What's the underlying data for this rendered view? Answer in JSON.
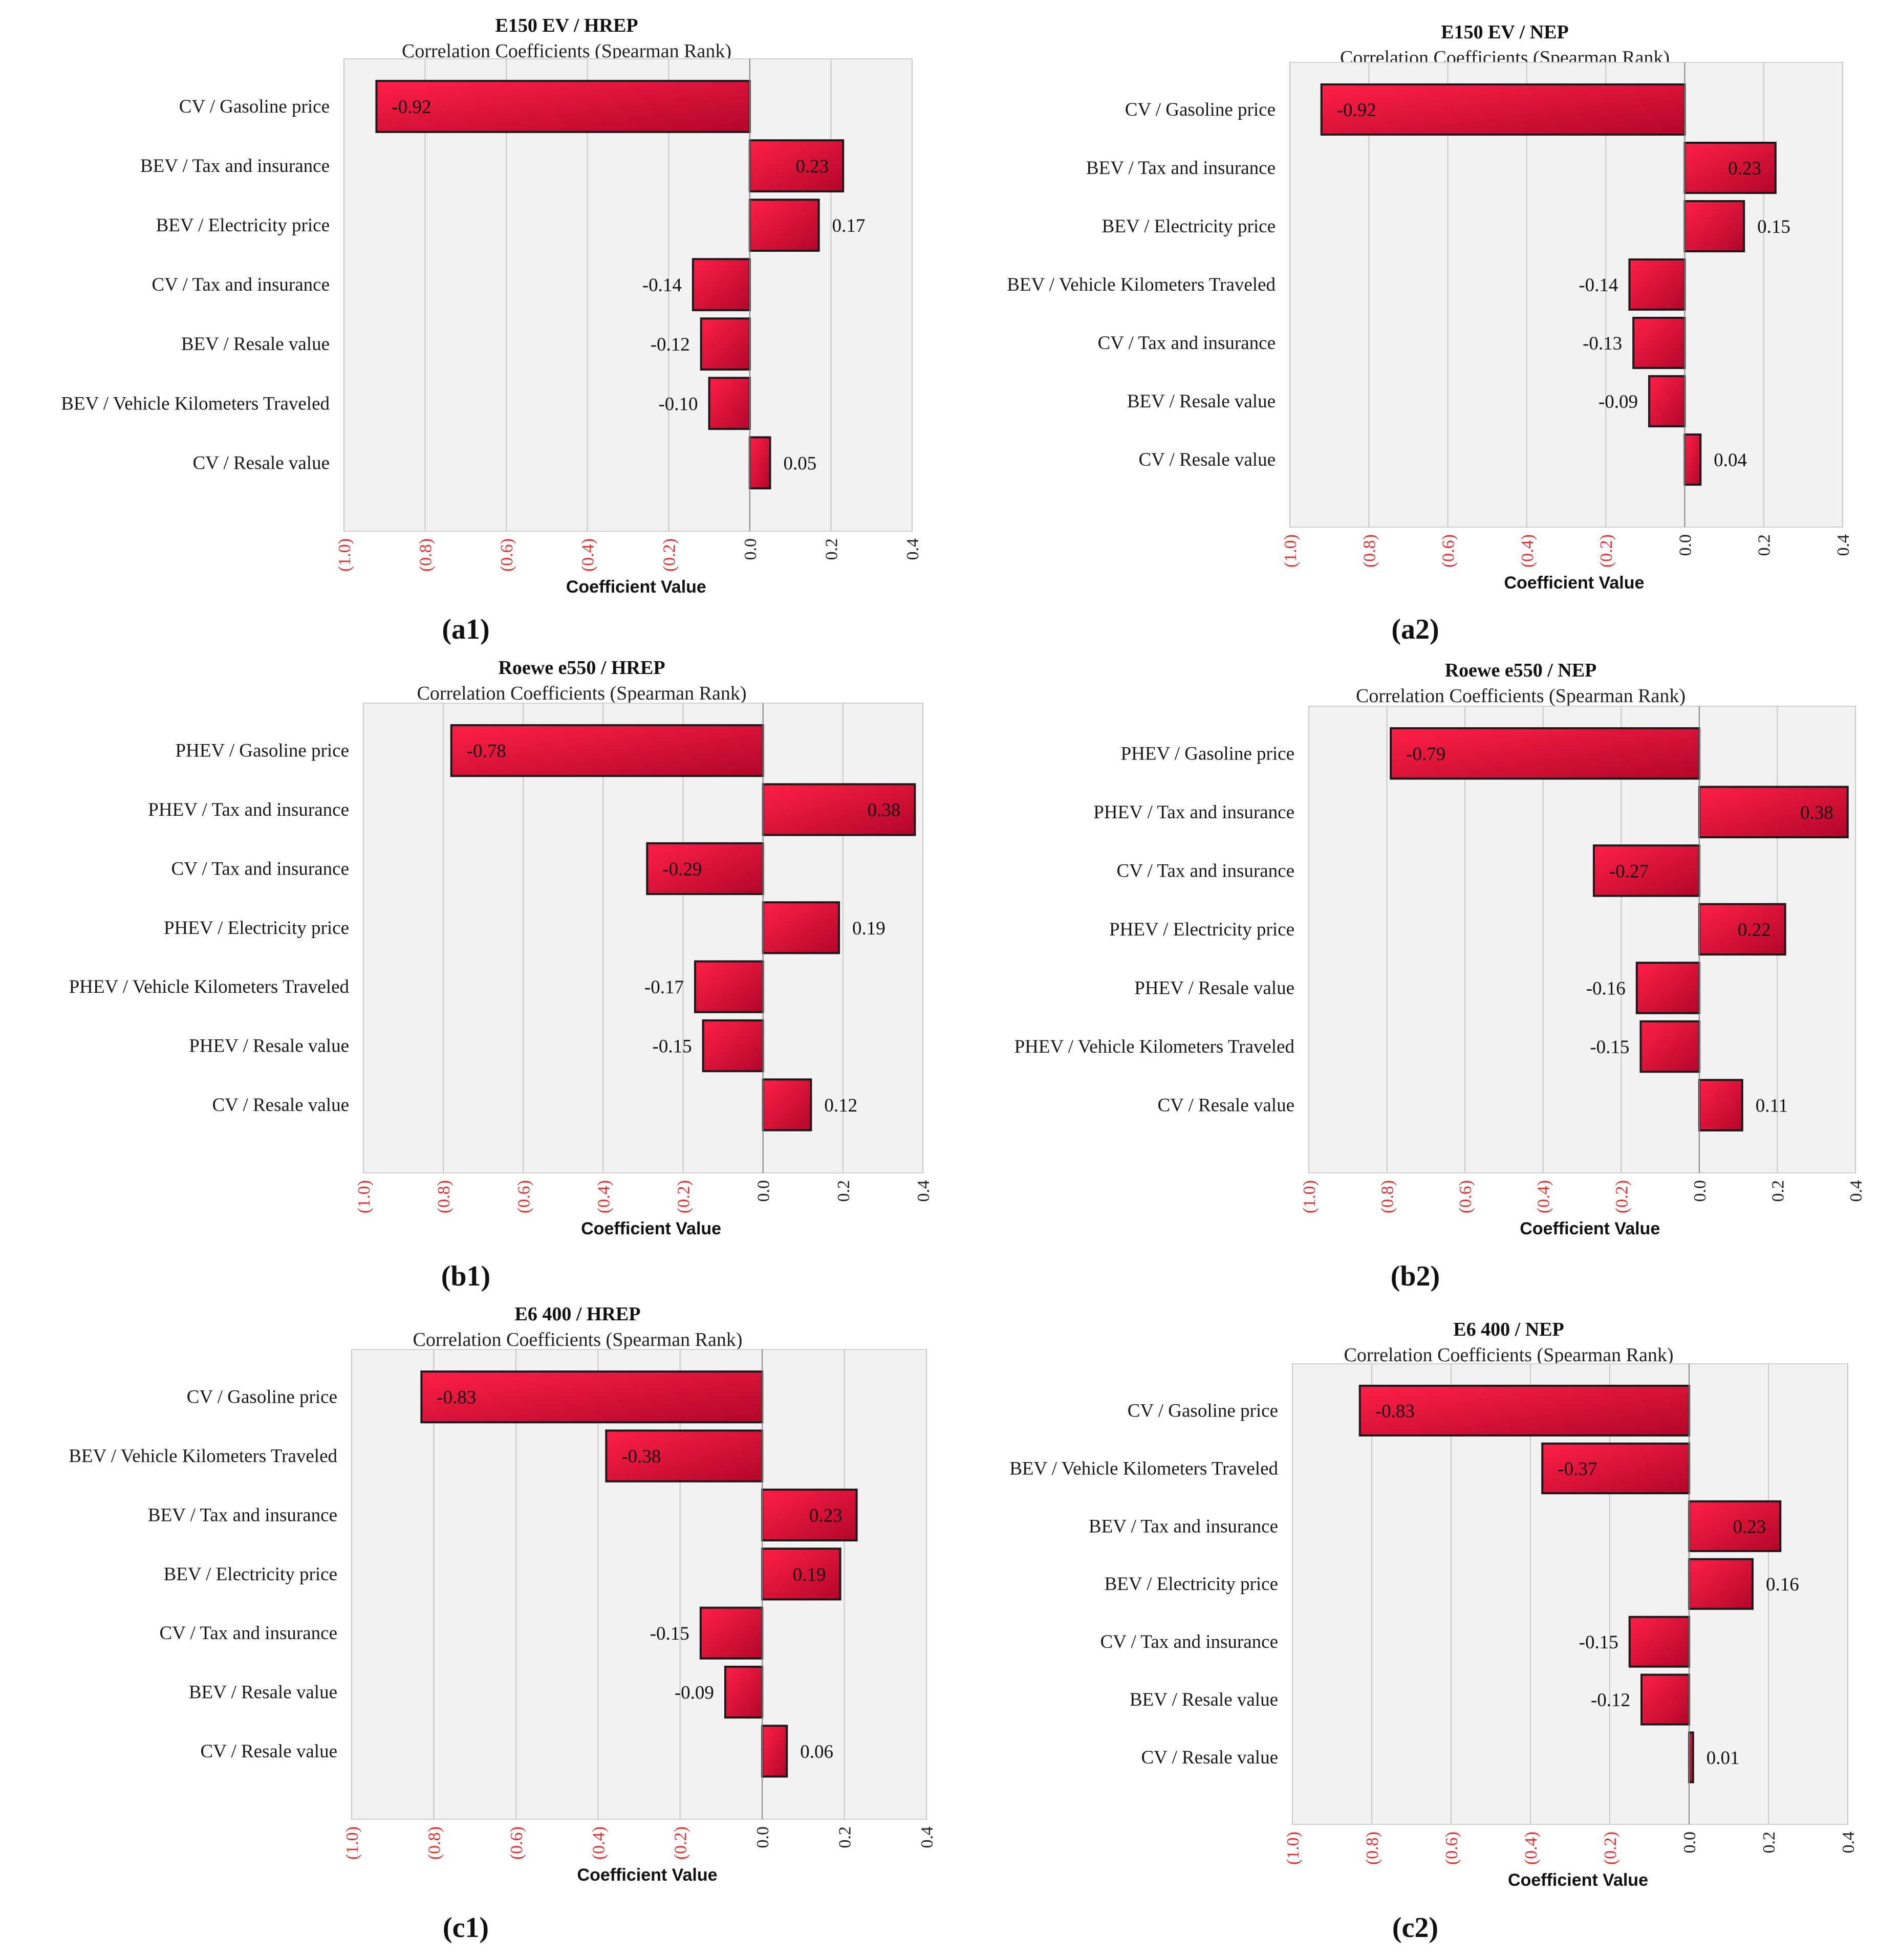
{
  "colors": {
    "bar_dark": "#b3062a",
    "bar_light": "#ff1f47",
    "plot_bg": "#f2f2f2",
    "grid": "#c8c8c8",
    "negative_tick": "#e03030",
    "positive_tick": "#222222"
  },
  "chart_data": [
    {
      "id": "a1",
      "panel_label": "(a1)",
      "type": "bar",
      "orientation": "horizontal",
      "title": "E150 EV / HREP",
      "subtitle": "Correlation Coefficients (Spearman Rank)",
      "xlabel": "Coefficient Value",
      "xlim": [
        -1.0,
        0.4
      ],
      "xticks": [
        -1.0,
        -0.8,
        -0.6,
        -0.4,
        -0.2,
        0.0,
        0.2,
        0.4
      ],
      "xtick_labels": [
        "(1.0)",
        "(0.8)",
        "(0.6)",
        "(0.4)",
        "(0.2)",
        "0.0",
        "0.2",
        "0.4"
      ],
      "categories": [
        "CV / Gasoline price",
        "BEV / Tax and insurance",
        "BEV / Electricity price",
        "CV / Tax and insurance",
        "BEV / Resale value",
        "BEV / Vehicle Kilometers Traveled",
        "CV / Resale value"
      ],
      "values": [
        -0.92,
        0.23,
        0.17,
        -0.14,
        -0.12,
        -0.1,
        0.05
      ],
      "value_labels": [
        "-0.92",
        "0.23",
        "0.17",
        "-0.14",
        "-0.12",
        "-0.10",
        "0.05"
      ]
    },
    {
      "id": "a2",
      "panel_label": "(a2)",
      "type": "bar",
      "orientation": "horizontal",
      "title": "E150 EV / NEP",
      "subtitle": "Correlation Coefficients (Spearman Rank)",
      "xlabel": "Coefficient Value",
      "xlim": [
        -1.0,
        0.4
      ],
      "xticks": [
        -1.0,
        -0.8,
        -0.6,
        -0.4,
        -0.2,
        0.0,
        0.2,
        0.4
      ],
      "xtick_labels": [
        "(1.0)",
        "(0.8)",
        "(0.6)",
        "(0.4)",
        "(0.2)",
        "0.0",
        "0.2",
        "0.4"
      ],
      "categories": [
        "CV / Gasoline price",
        "BEV / Tax and insurance",
        "BEV / Electricity price",
        "BEV / Vehicle Kilometers Traveled",
        "CV / Tax and insurance",
        "BEV / Resale value",
        "CV / Resale value"
      ],
      "values": [
        -0.92,
        0.23,
        0.15,
        -0.14,
        -0.13,
        -0.09,
        0.04
      ],
      "value_labels": [
        "-0.92",
        "0.23",
        "0.15",
        "-0.14",
        "-0.13",
        "-0.09",
        "0.04"
      ]
    },
    {
      "id": "b1",
      "panel_label": "(b1)",
      "type": "bar",
      "orientation": "horizontal",
      "title": "Roewe e550 / HREP",
      "subtitle": "Correlation Coefficients (Spearman Rank)",
      "xlabel": "Coefficient Value",
      "xlim": [
        -1.0,
        0.4
      ],
      "xticks": [
        -1.0,
        -0.8,
        -0.6,
        -0.4,
        -0.2,
        0.0,
        0.2,
        0.4
      ],
      "xtick_labels": [
        "(1.0)",
        "(0.8)",
        "(0.6)",
        "(0.4)",
        "(0.2)",
        "0.0",
        "0.2",
        "0.4"
      ],
      "categories": [
        "PHEV / Gasoline price",
        "PHEV / Tax and insurance",
        "CV / Tax and insurance",
        "PHEV / Electricity price",
        "PHEV / Vehicle Kilometers Traveled",
        "PHEV / Resale value",
        "CV / Resale value"
      ],
      "values": [
        -0.78,
        0.38,
        -0.29,
        0.19,
        -0.17,
        -0.15,
        0.12
      ],
      "value_labels": [
        "-0.78",
        "0.38",
        "-0.29",
        "0.19",
        "-0.17",
        "-0.15",
        "0.12"
      ]
    },
    {
      "id": "b2",
      "panel_label": "(b2)",
      "type": "bar",
      "orientation": "horizontal",
      "title": "Roewe e550 / NEP",
      "subtitle": "Correlation Coefficients (Spearman Rank)",
      "xlabel": "Coefficient Value",
      "xlim": [
        -1.0,
        0.4
      ],
      "xticks": [
        -1.0,
        -0.8,
        -0.6,
        -0.4,
        -0.2,
        0.0,
        0.2,
        0.4
      ],
      "xtick_labels": [
        "(1.0)",
        "(0.8)",
        "(0.6)",
        "(0.4)",
        "(0.2)",
        "0.0",
        "0.2",
        "0.4"
      ],
      "categories": [
        "PHEV / Gasoline price",
        "PHEV / Tax and insurance",
        "CV / Tax and insurance",
        "PHEV / Electricity price",
        "PHEV / Resale value",
        "PHEV / Vehicle Kilometers Traveled",
        "CV / Resale value"
      ],
      "values": [
        -0.79,
        0.38,
        -0.27,
        0.22,
        -0.16,
        -0.15,
        0.11
      ],
      "value_labels": [
        "-0.79",
        "0.38",
        "-0.27",
        "0.22",
        "-0.16",
        "-0.15",
        "0.11"
      ]
    },
    {
      "id": "c1",
      "panel_label": "(c1)",
      "type": "bar",
      "orientation": "horizontal",
      "title": "E6 400 / HREP",
      "subtitle": "Correlation Coefficients (Spearman Rank)",
      "xlabel": "Coefficient Value",
      "xlim": [
        -1.0,
        0.4
      ],
      "xticks": [
        -1.0,
        -0.8,
        -0.6,
        -0.4,
        -0.2,
        0.0,
        0.2,
        0.4
      ],
      "xtick_labels": [
        "(1.0)",
        "(0.8)",
        "(0.6)",
        "(0.4)",
        "(0.2)",
        "0.0",
        "0.2",
        "0.4"
      ],
      "categories": [
        "CV / Gasoline price",
        "BEV / Vehicle Kilometers Traveled",
        "BEV / Tax and insurance",
        "BEV / Electricity price",
        "CV / Tax and insurance",
        "BEV / Resale value",
        "CV / Resale value"
      ],
      "values": [
        -0.83,
        -0.38,
        0.23,
        0.19,
        -0.15,
        -0.09,
        0.06
      ],
      "value_labels": [
        "-0.83",
        "-0.38",
        "0.23",
        "0.19",
        "-0.15",
        "-0.09",
        "0.06"
      ]
    },
    {
      "id": "c2",
      "panel_label": "(c2)",
      "type": "bar",
      "orientation": "horizontal",
      "title": "E6 400 / NEP",
      "subtitle": "Correlation Coefficients (Spearman Rank)",
      "xlabel": "Coefficient Value",
      "xlim": [
        -1.0,
        0.4
      ],
      "xticks": [
        -1.0,
        -0.8,
        -0.6,
        -0.4,
        -0.2,
        0.0,
        0.2,
        0.4
      ],
      "xtick_labels": [
        "(1.0)",
        "(0.8)",
        "(0.6)",
        "(0.4)",
        "(0.2)",
        "0.0",
        "0.2",
        "0.4"
      ],
      "categories": [
        "CV / Gasoline price",
        "BEV / Vehicle Kilometers Traveled",
        "BEV / Tax and insurance",
        "BEV / Electricity price",
        "CV / Tax and insurance",
        "BEV / Resale value",
        "CV / Resale value"
      ],
      "values": [
        -0.83,
        -0.37,
        0.23,
        0.16,
        -0.15,
        -0.12,
        0.01
      ],
      "value_labels": [
        "-0.83",
        "-0.37",
        "0.23",
        "0.16",
        "-0.15",
        "-0.12",
        "0.01"
      ]
    }
  ]
}
